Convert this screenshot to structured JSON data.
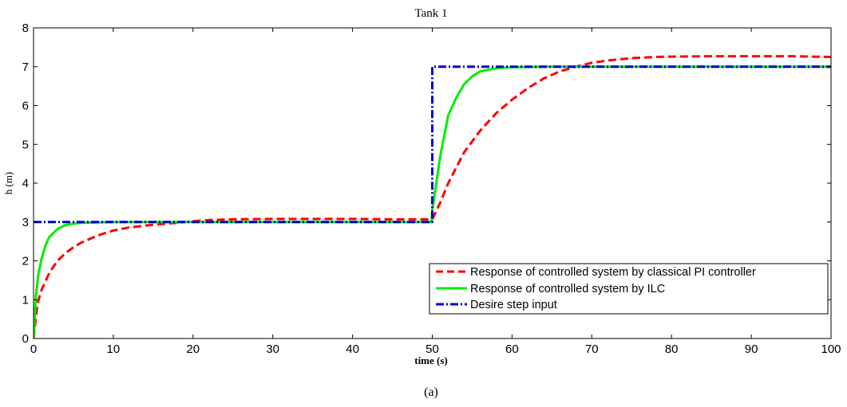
{
  "chart_data": {
    "type": "line",
    "title": "Tank 1",
    "xlabel": "time (s)",
    "ylabel": "h (m)",
    "caption": "(a)",
    "xlim": [
      0,
      100
    ],
    "ylim": [
      0,
      8
    ],
    "xticks": [
      "0",
      "10",
      "20",
      "30",
      "40",
      "50",
      "60",
      "70",
      "80",
      "90",
      "100"
    ],
    "yticks": [
      "0",
      "1",
      "2",
      "3",
      "4",
      "5",
      "6",
      "7",
      "8"
    ],
    "grid": false,
    "legend_position": "lower-right",
    "series": [
      {
        "name": "Response of controlled system by classical PI controller",
        "color": "#ff0000",
        "style": "dashed",
        "x": [
          0,
          0.5,
          1,
          2,
          3,
          4,
          5,
          6,
          8,
          10,
          12,
          15,
          18,
          20,
          22,
          25,
          30,
          35,
          40,
          45,
          49.9,
          50,
          51,
          52,
          54,
          56,
          58,
          60,
          62,
          64,
          66,
          68,
          70,
          72,
          75,
          78,
          80,
          85,
          90,
          95,
          100
        ],
        "y": [
          0,
          0.9,
          1.25,
          1.7,
          2.0,
          2.2,
          2.35,
          2.47,
          2.65,
          2.78,
          2.86,
          2.93,
          2.98,
          3.02,
          3.05,
          3.07,
          3.08,
          3.08,
          3.08,
          3.07,
          3.07,
          3.07,
          3.5,
          4.0,
          4.8,
          5.35,
          5.8,
          6.15,
          6.45,
          6.7,
          6.88,
          7.0,
          7.1,
          7.16,
          7.22,
          7.25,
          7.26,
          7.27,
          7.27,
          7.27,
          7.25
        ]
      },
      {
        "name": "Response of controlled system by ILC",
        "color": "#00ee00",
        "style": "solid",
        "x": [
          0,
          0.3,
          0.6,
          1,
          1.5,
          2,
          3,
          4,
          5,
          6,
          8,
          10,
          15,
          20,
          30,
          40,
          49.9,
          50,
          51,
          52,
          53,
          54,
          55,
          56,
          58,
          60,
          65,
          70,
          80,
          90,
          100
        ],
        "y": [
          0,
          1.1,
          1.65,
          2.05,
          2.4,
          2.62,
          2.82,
          2.92,
          2.96,
          2.98,
          2.99,
          3.0,
          3.0,
          3.0,
          3.0,
          3.0,
          3.0,
          3.3,
          4.7,
          5.75,
          6.2,
          6.55,
          6.75,
          6.88,
          6.96,
          6.99,
          7.0,
          7.0,
          7.0,
          7.0,
          7.0
        ]
      },
      {
        "name": "Desire step input",
        "color": "#0000cc",
        "style": "dashdot",
        "x": [
          0,
          50,
          50,
          100
        ],
        "y": [
          3,
          3,
          7,
          7
        ]
      }
    ]
  }
}
